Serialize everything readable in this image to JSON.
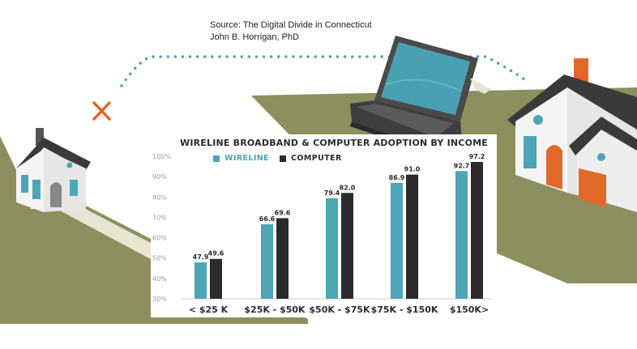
{
  "source": {
    "line1": "Source: The Digital Divide in Connecticut",
    "line2": "John B. Horrigan, PhD"
  },
  "colors": {
    "grass": "#8d8f5e",
    "wireline": "#4da5b5",
    "computer": "#2b2b2b",
    "accent": "#e0692a"
  },
  "icons": [
    "house-icon",
    "laptop-icon",
    "x-mark-icon"
  ],
  "chart_data": {
    "type": "bar",
    "title": "WIRELINE BROADBAND & COMPUTER ADOPTION BY INCOME",
    "categories": [
      "< $25 K",
      "$25K - $50K",
      "$50K - $75K",
      "$75K - $150K",
      "$150K>"
    ],
    "series": [
      {
        "name": "WIRELINE",
        "color": "#4da5b5",
        "values": [
          47.9,
          66.6,
          79.4,
          86.9,
          92.7
        ]
      },
      {
        "name": "COMPUTER",
        "color": "#2b2b2b",
        "values": [
          49.6,
          69.6,
          82.0,
          91.0,
          97.2
        ]
      }
    ],
    "y_ticks": [
      "100%",
      "90%",
      "80%",
      "70%",
      "60%",
      "50%",
      "40%",
      "30%"
    ],
    "ylim": [
      30,
      100
    ],
    "xlabel": "",
    "ylabel": "",
    "grid": false,
    "legend_position": "top-left"
  }
}
